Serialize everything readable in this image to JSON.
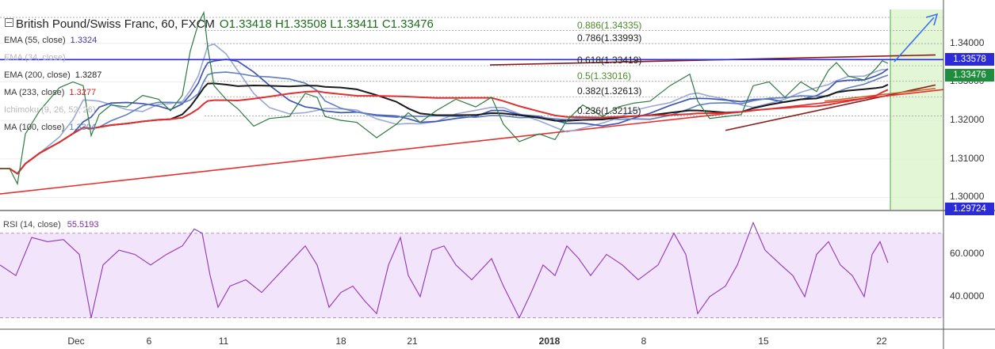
{
  "header": {
    "collapse_icon": "square-minus-icon",
    "title": "British Pound/Swiss Franc, 60, FXCM",
    "ohlc": "O1.33418  H1.33508  L1.33411  C1.33476"
  },
  "indicators": [
    {
      "label": "EMA (55, close)",
      "value": "1.3324",
      "color": "#3b3b9b"
    },
    {
      "label": "EMA (34, close)",
      "value": "",
      "color": "#bdbdbd"
    },
    {
      "label": "EMA (200, close)",
      "value": "1.3287",
      "color": "#222222"
    },
    {
      "label": "MA (233, close)",
      "value": "1.3277",
      "color": "#d32020"
    },
    {
      "label": "Ichimoku (9, 26, 52, 26)",
      "value": "",
      "color": "#bdbdbd"
    },
    {
      "label": "MA (100, close)",
      "value": "1.3304",
      "color": "#5d7fbf"
    }
  ],
  "fibonacci": [
    {
      "label": "0.886(1.34335)",
      "price": 1.34335,
      "color": "#4c8a2a"
    },
    {
      "label": "0.786(1.33993)",
      "price": 1.33993,
      "color": "#222222"
    },
    {
      "label": "0.618(1.33419)",
      "price": 1.33419,
      "color": "#222222"
    },
    {
      "label": "0.5(1.33016)",
      "price": 1.33016,
      "color": "#4c8a2a"
    },
    {
      "label": "0.382(1.32613)",
      "price": 1.32613,
      "color": "#222222"
    },
    {
      "label": "0.236(1.32115)",
      "price": 1.32115,
      "color": "#222222"
    }
  ],
  "price_tags": [
    {
      "label": "1.33578",
      "price": 1.33578,
      "color": "#2b2bd8"
    },
    {
      "label": "1.33476",
      "price": 1.33476,
      "color": "#1e8e3e"
    },
    {
      "label": "1.29724",
      "price": 1.29724,
      "color": "#2b2bd8"
    }
  ],
  "rsi": {
    "label": "RSI (14, close)",
    "value": "55.5193",
    "color": "#7e2aa8"
  },
  "chart_data": {
    "type": "line",
    "series_kind": "candlestick-hourly",
    "price_axis": {
      "ticks": [
        "1.34000",
        "1.33000",
        "1.32000",
        "1.31000",
        "1.30000"
      ],
      "range": [
        1.2968,
        1.3488
      ]
    },
    "rsi_axis": {
      "ticks": [
        "60.0000",
        "40.0000"
      ],
      "range": [
        25,
        80
      ],
      "bands": [
        30,
        70
      ]
    },
    "x_ticks": [
      {
        "label": "Dec",
        "bold": false
      },
      {
        "label": "6",
        "bold": false
      },
      {
        "label": "11",
        "bold": false
      },
      {
        "label": "18",
        "bold": false
      },
      {
        "label": "21",
        "bold": false
      },
      {
        "label": "2018",
        "bold": true
      },
      {
        "label": "8",
        "bold": false
      },
      {
        "label": "15",
        "bold": false
      },
      {
        "label": "22",
        "bold": false
      }
    ],
    "x_range": [
      "Nov 29",
      "Jan 23"
    ],
    "price_path": [
      [
        0,
        1.3075
      ],
      [
        12,
        1.3075
      ],
      [
        22,
        1.3035
      ],
      [
        32,
        1.3165
      ],
      [
        50,
        1.3225
      ],
      [
        75,
        1.3285
      ],
      [
        92,
        1.33
      ],
      [
        105,
        1.329
      ],
      [
        115,
        1.316
      ],
      [
        125,
        1.3215
      ],
      [
        140,
        1.324
      ],
      [
        160,
        1.3235
      ],
      [
        180,
        1.3265
      ],
      [
        200,
        1.3255
      ],
      [
        215,
        1.3225
      ],
      [
        230,
        1.3265
      ],
      [
        240,
        1.338
      ],
      [
        250,
        1.345
      ],
      [
        257,
        1.348
      ],
      [
        262,
        1.339
      ],
      [
        270,
        1.329
      ],
      [
        285,
        1.3255
      ],
      [
        300,
        1.323
      ],
      [
        320,
        1.3185
      ],
      [
        340,
        1.3205
      ],
      [
        365,
        1.321
      ],
      [
        385,
        1.327
      ],
      [
        400,
        1.326
      ],
      [
        410,
        1.321
      ],
      [
        430,
        1.32
      ],
      [
        450,
        1.3195
      ],
      [
        475,
        1.3155
      ],
      [
        500,
        1.319
      ],
      [
        515,
        1.322
      ],
      [
        530,
        1.3195
      ],
      [
        550,
        1.3225
      ],
      [
        575,
        1.3255
      ],
      [
        600,
        1.3235
      ],
      [
        620,
        1.326
      ],
      [
        635,
        1.319
      ],
      [
        655,
        1.3145
      ],
      [
        680,
        1.3165
      ],
      [
        700,
        1.315
      ],
      [
        715,
        1.32
      ],
      [
        735,
        1.324
      ],
      [
        760,
        1.321
      ],
      [
        780,
        1.3235
      ],
      [
        800,
        1.3245
      ],
      [
        820,
        1.325
      ],
      [
        845,
        1.329
      ],
      [
        870,
        1.332
      ],
      [
        880,
        1.325
      ],
      [
        895,
        1.3205
      ],
      [
        915,
        1.321
      ],
      [
        935,
        1.3215
      ],
      [
        950,
        1.329
      ],
      [
        970,
        1.33
      ],
      [
        990,
        1.326
      ],
      [
        1010,
        1.33
      ],
      [
        1030,
        1.3275
      ],
      [
        1045,
        1.333
      ],
      [
        1055,
        1.335
      ],
      [
        1070,
        1.3315
      ],
      [
        1090,
        1.3305
      ],
      [
        1105,
        1.3335
      ],
      [
        1113,
        1.3355
      ],
      [
        1120,
        1.3348
      ]
    ],
    "trendlines": [
      {
        "name": "channel-top",
        "from": [
          618,
          1.3344
        ],
        "to": [
          1180,
          1.337
        ],
        "color": "#8b1a1a"
      },
      {
        "name": "channel-bottom",
        "from": [
          915,
          1.3174
        ],
        "to": [
          1180,
          1.3292
        ],
        "color": "#8b1a1a"
      },
      {
        "name": "support-long",
        "from": [
          0,
          1.3009
        ],
        "to": [
          1190,
          1.328
        ],
        "color": "#e53030"
      },
      {
        "name": "support-short",
        "from": [
          1040,
          1.325
        ],
        "to": [
          1180,
          1.3283
        ],
        "color": "#c26a2a"
      }
    ],
    "rsi_path": [
      [
        0,
        55
      ],
      [
        20,
        50
      ],
      [
        40,
        68
      ],
      [
        60,
        66
      ],
      [
        80,
        67
      ],
      [
        100,
        60
      ],
      [
        115,
        30
      ],
      [
        130,
        55
      ],
      [
        150,
        62
      ],
      [
        170,
        60
      ],
      [
        190,
        55
      ],
      [
        210,
        60
      ],
      [
        230,
        64
      ],
      [
        245,
        72
      ],
      [
        255,
        70
      ],
      [
        265,
        50
      ],
      [
        275,
        35
      ],
      [
        290,
        45
      ],
      [
        310,
        48
      ],
      [
        330,
        42
      ],
      [
        350,
        50
      ],
      [
        370,
        58
      ],
      [
        385,
        64
      ],
      [
        400,
        55
      ],
      [
        415,
        35
      ],
      [
        430,
        42
      ],
      [
        445,
        45
      ],
      [
        460,
        38
      ],
      [
        475,
        32
      ],
      [
        490,
        55
      ],
      [
        505,
        68
      ],
      [
        515,
        50
      ],
      [
        530,
        40
      ],
      [
        545,
        62
      ],
      [
        560,
        64
      ],
      [
        575,
        55
      ],
      [
        595,
        48
      ],
      [
        620,
        58
      ],
      [
        635,
        45
      ],
      [
        655,
        30
      ],
      [
        670,
        42
      ],
      [
        685,
        55
      ],
      [
        700,
        50
      ],
      [
        715,
        64
      ],
      [
        730,
        58
      ],
      [
        745,
        50
      ],
      [
        765,
        60
      ],
      [
        785,
        55
      ],
      [
        805,
        48
      ],
      [
        830,
        55
      ],
      [
        850,
        70
      ],
      [
        865,
        60
      ],
      [
        880,
        32
      ],
      [
        895,
        40
      ],
      [
        915,
        45
      ],
      [
        930,
        55
      ],
      [
        950,
        75
      ],
      [
        965,
        62
      ],
      [
        985,
        55
      ],
      [
        1000,
        50
      ],
      [
        1015,
        40
      ],
      [
        1030,
        60
      ],
      [
        1045,
        66
      ],
      [
        1060,
        55
      ],
      [
        1075,
        50
      ],
      [
        1090,
        40
      ],
      [
        1100,
        60
      ],
      [
        1110,
        66
      ],
      [
        1120,
        56
      ]
    ]
  }
}
